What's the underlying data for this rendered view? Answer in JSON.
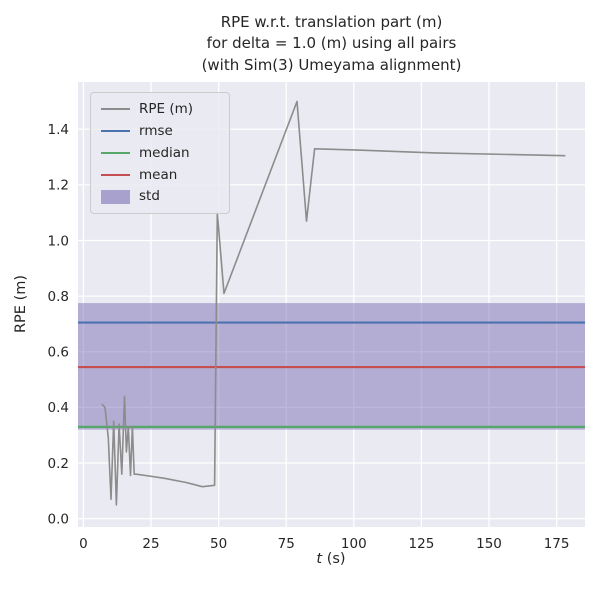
{
  "figure": {
    "title_lines": [
      "RPE w.r.t. translation part (m)",
      "for delta = 1.0 (m) using all pairs",
      "(with Sim(3) Umeyama alignment)"
    ],
    "xlabel_var": "t",
    "xlabel_unit": " (s)",
    "ylabel": "RPE (m)"
  },
  "chart_data": {
    "type": "line",
    "title": "RPE w.r.t. translation part (m) for delta = 1.0 (m) using all pairs (with Sim(3) Umeyama alignment)",
    "xlabel": "t (s)",
    "ylabel": "RPE (m)",
    "xlim": [
      -2,
      185.5
    ],
    "ylim": [
      -0.03,
      1.57
    ],
    "xticks": [
      0,
      25,
      50,
      75,
      100,
      125,
      150,
      175
    ],
    "xtick_labels": [
      "0",
      "25",
      "50",
      "75",
      "100",
      "125",
      "150",
      "175"
    ],
    "yticks": [
      0.0,
      0.2,
      0.4,
      0.6,
      0.8,
      1.0,
      1.2,
      1.4
    ],
    "ytick_labels": [
      "0.0",
      "0.2",
      "0.4",
      "0.6",
      "0.8",
      "1.0",
      "1.2",
      "1.4"
    ],
    "grid": true,
    "axes_bg": "#eaeaf2",
    "grid_color": "#ffffff",
    "legend_position": "upper left",
    "series": [
      {
        "key": "rpe",
        "name": "RPE (m)",
        "style": "line",
        "color": "#8c8c8c",
        "x": [
          7,
          8,
          9.2,
          10.2,
          11.2,
          12.2,
          13.2,
          14.2,
          15.2,
          15.9,
          16.6,
          17.4,
          18.1,
          18.8,
          19.5,
          23,
          30,
          38,
          44,
          48.5,
          49.5,
          52,
          79,
          82.5,
          85.5,
          100,
          130,
          178
        ],
        "y": [
          0.41,
          0.4,
          0.29,
          0.07,
          0.35,
          0.05,
          0.34,
          0.16,
          0.44,
          0.24,
          0.33,
          0.155,
          0.33,
          0.16,
          0.16,
          0.155,
          0.145,
          0.13,
          0.115,
          0.12,
          1.1,
          0.81,
          1.5,
          1.07,
          1.33,
          1.326,
          1.315,
          1.305
        ]
      },
      {
        "key": "rmse",
        "name": "rmse",
        "style": "hline",
        "color": "#4c72b0",
        "value": 0.705
      },
      {
        "key": "median",
        "name": "median",
        "style": "hline",
        "color": "#55a868",
        "value": 0.33
      },
      {
        "key": "mean",
        "name": "mean",
        "style": "hline",
        "color": "#c44e52",
        "value": 0.545
      },
      {
        "key": "std",
        "name": "std",
        "style": "hspan",
        "color": "#7b6fb5",
        "opacity": 0.5,
        "ymin": 0.32,
        "ymax": 0.775
      }
    ]
  }
}
